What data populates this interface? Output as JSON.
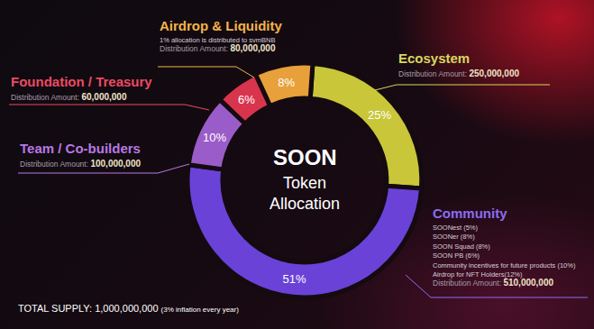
{
  "chart_data": {
    "type": "pie",
    "title": "SOON",
    "subtitle": "Token Allocation",
    "categories": [
      "Ecosystem",
      "Community",
      "Team / Co-builders",
      "Foundation / Treasury",
      "Airdrop & Liquidity"
    ],
    "values": [
      25,
      51,
      10,
      6,
      8
    ],
    "value_labels": [
      "25%",
      "51%",
      "10%",
      "6%",
      "8%"
    ],
    "colors": [
      "#c9c63a",
      "#6a42d8",
      "#9a5cc8",
      "#d8344e",
      "#e8a03a"
    ],
    "data_labels": true,
    "annotations": [
      {
        "category": "Ecosystem",
        "text": [],
        "amount_label": "Distribution Amount:",
        "amount": "250,000,000"
      },
      {
        "category": "Community",
        "text": [
          "SOONest (5%)",
          "SOONer (8%)",
          "SOON Squad (8%)",
          "SOON PB (6%)",
          "Community incentives for future products (10%)",
          "Airdrop for NFT Holders(12%)"
        ],
        "amount_label": "Distribution Amount:",
        "amount": "510,000,000"
      },
      {
        "category": "Team / Co-builders",
        "text": [],
        "amount_label": "Distribution Amount:",
        "amount": "100,000,000"
      },
      {
        "category": "Foundation / Treasury",
        "text": [],
        "amount_label": "Distribution Amount:",
        "amount": "60,000,000"
      },
      {
        "category": "Airdrop & Liquidity",
        "text": [
          "1% allocation is distributed to svmBNB"
        ],
        "amount_label": "Distribution Amount:",
        "amount": "80,000,000"
      }
    ],
    "footnote": {
      "text": "TOTAL SUPPLY: 1,000,000,000",
      "note": "(3% inflation every year)"
    }
  }
}
